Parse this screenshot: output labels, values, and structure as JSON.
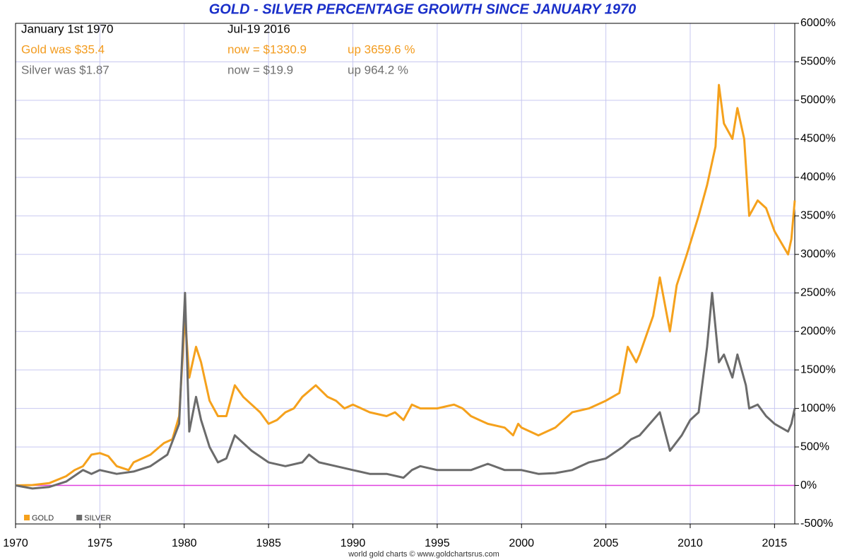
{
  "chart_data": {
    "type": "line",
    "title": "GOLD - SILVER PERCENTAGE GROWTH SINCE JANUARY 1970",
    "annotations": [
      {
        "text": "January 1st 1970",
        "color": "#000000"
      },
      {
        "text": "Jul-19  2016",
        "color": "#000000"
      },
      {
        "text": "Gold was $35.4",
        "color": "#f39c1f"
      },
      {
        "text": "now = $1330.9",
        "color": "#f39c1f"
      },
      {
        "text": "up 3659.6 %",
        "color": "#f39c1f"
      },
      {
        "text": "Silver was $1.87",
        "color": "#707070"
      },
      {
        "text": "now = $19.9",
        "color": "#707070"
      },
      {
        "text": "up 964.2 %",
        "color": "#707070"
      }
    ],
    "source": "world gold charts © www.goldchartsrus.com",
    "xlim": [
      1970,
      2016.2
    ],
    "xticks": [
      1970,
      1975,
      1980,
      1985,
      1990,
      1995,
      2000,
      2005,
      2010,
      2015
    ],
    "ylim": [
      -500,
      6000
    ],
    "yticks": [
      {
        "value": -500,
        "label": "-500%"
      },
      {
        "value": 0,
        "label": "0%"
      },
      {
        "value": 500,
        "label": "500%"
      },
      {
        "value": 1000,
        "label": "1000%"
      },
      {
        "value": 1500,
        "label": "1500%"
      },
      {
        "value": 2000,
        "label": "2000%"
      },
      {
        "value": 2500,
        "label": "2500%"
      },
      {
        "value": 3000,
        "label": "3000%"
      },
      {
        "value": 3500,
        "label": "3500%"
      },
      {
        "value": 4000,
        "label": "4000%"
      },
      {
        "value": 4500,
        "label": "4500%"
      },
      {
        "value": 5000,
        "label": "5000%"
      },
      {
        "value": 5500,
        "label": "5500%"
      },
      {
        "value": 6000,
        "label": "6000%"
      }
    ],
    "grid": true,
    "zero_line_color": "#e040e0",
    "legend": "bottom-left",
    "series": [
      {
        "name": "GOLD",
        "color": "#f5a11c",
        "x": [
          1970,
          1971,
          1972,
          1973,
          1973.5,
          1974,
          1974.5,
          1975,
          1975.5,
          1976,
          1976.7,
          1977,
          1978,
          1978.8,
          1979.3,
          1979.7,
          1980.05,
          1980.3,
          1980.7,
          1981,
          1981.5,
          1982,
          1982.5,
          1983,
          1983.5,
          1984,
          1984.5,
          1985,
          1985.5,
          1986,
          1986.5,
          1987,
          1987.8,
          1988.5,
          1989,
          1989.5,
          1990,
          1990.5,
          1991,
          1992,
          1992.5,
          1993,
          1993.5,
          1994,
          1995,
          1996,
          1996.5,
          1997,
          1997.5,
          1998,
          1999,
          1999.5,
          1999.8,
          2000,
          2000.5,
          2001,
          2002,
          2003,
          2004,
          2005,
          2005.8,
          2006.3,
          2006.8,
          2007,
          2007.8,
          2008.2,
          2008.8,
          2009.2,
          2009.8,
          2010.5,
          2011,
          2011.5,
          2011.7,
          2012,
          2012.5,
          2012.8,
          2013.2,
          2013.5,
          2014,
          2014.5,
          2015,
          2015.8,
          2016,
          2016.2
        ],
        "values": [
          0,
          5,
          30,
          120,
          200,
          250,
          400,
          420,
          380,
          250,
          200,
          300,
          400,
          550,
          600,
          900,
          2200,
          1400,
          1800,
          1600,
          1100,
          900,
          900,
          1300,
          1150,
          1050,
          950,
          800,
          850,
          950,
          1000,
          1150,
          1300,
          1150,
          1100,
          1000,
          1050,
          1000,
          950,
          900,
          950,
          850,
          1050,
          1000,
          1000,
          1050,
          1000,
          900,
          850,
          800,
          750,
          650,
          800,
          750,
          700,
          650,
          750,
          950,
          1000,
          1100,
          1200,
          1800,
          1600,
          1700,
          2200,
          2700,
          2000,
          2600,
          3000,
          3500,
          3900,
          4400,
          5200,
          4700,
          4500,
          4900,
          4500,
          3500,
          3700,
          3600,
          3300,
          3000,
          3200,
          3700
        ]
      },
      {
        "name": "SILVER",
        "color": "#6b6b6b",
        "x": [
          1970,
          1971,
          1972,
          1973,
          1974,
          1974.5,
          1975,
          1976,
          1977,
          1978,
          1979,
          1979.7,
          1980.05,
          1980.3,
          1980.7,
          1981,
          1981.5,
          1982,
          1982.5,
          1983,
          1983.5,
          1984,
          1985,
          1986,
          1987,
          1987.4,
          1988,
          1989,
          1990,
          1991,
          1992,
          1993,
          1993.5,
          1994,
          1995,
          1996,
          1997,
          1998,
          1999,
          2000,
          2001,
          2002,
          2003,
          2004,
          2005,
          2006,
          2006.5,
          2007,
          2008.2,
          2008.8,
          2009.5,
          2010,
          2010.5,
          2011,
          2011.3,
          2011.7,
          2012,
          2012.5,
          2012.8,
          2013.3,
          2013.5,
          2014,
          2014.5,
          2015,
          2015.8,
          2016,
          2016.2
        ],
        "values": [
          0,
          -40,
          -20,
          50,
          200,
          150,
          200,
          150,
          180,
          250,
          400,
          800,
          2500,
          700,
          1150,
          850,
          500,
          300,
          350,
          650,
          550,
          450,
          300,
          250,
          300,
          400,
          300,
          250,
          200,
          150,
          150,
          100,
          200,
          250,
          200,
          200,
          200,
          280,
          200,
          200,
          150,
          160,
          200,
          300,
          350,
          500,
          600,
          650,
          950,
          450,
          650,
          850,
          950,
          1800,
          2500,
          1600,
          1700,
          1400,
          1700,
          1300,
          1000,
          1050,
          900,
          800,
          700,
          800,
          1000
        ]
      }
    ]
  }
}
